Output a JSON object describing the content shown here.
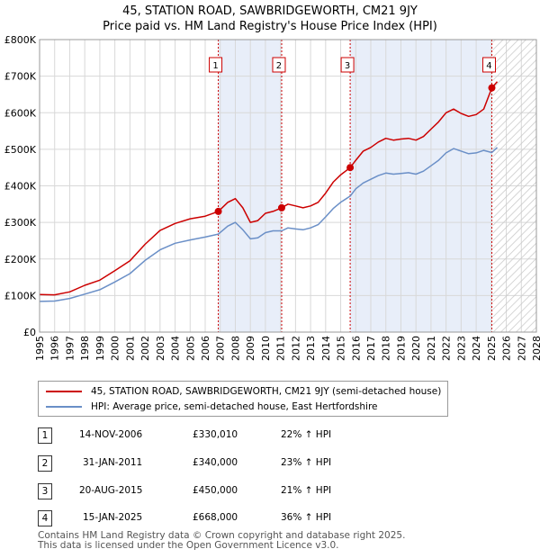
{
  "title_line1": "45, STATION ROAD, SAWBRIDGEWORTH, CM21 9JY",
  "title_line2": "Price paid vs. HM Land Registry's House Price Index (HPI)",
  "chart_data": {
    "type": "line",
    "title": "45, STATION ROAD, SAWBRIDGEWORTH, CM21 9JY — Price paid vs. HM Land Registry's House Price Index (HPI)",
    "xlim": [
      1995,
      2028
    ],
    "ylim": [
      0,
      800000
    ],
    "x_ticks": [
      1995,
      1996,
      1997,
      1998,
      1999,
      2000,
      2001,
      2002,
      2003,
      2004,
      2005,
      2006,
      2007,
      2008,
      2009,
      2010,
      2011,
      2012,
      2013,
      2014,
      2015,
      2016,
      2017,
      2018,
      2019,
      2020,
      2021,
      2022,
      2023,
      2024,
      2025,
      2026,
      2027,
      2028
    ],
    "y_ticks": [
      0,
      100000,
      200000,
      300000,
      400000,
      500000,
      600000,
      700000,
      800000
    ],
    "y_tick_labels": [
      "£0",
      "£100K",
      "£200K",
      "£300K",
      "£400K",
      "£500K",
      "£600K",
      "£700K",
      "£800K"
    ],
    "hatch_from": 2025.1,
    "series": [
      {
        "name": "45, STATION ROAD, SAWBRIDGEWORTH, CM21 9JY (semi-detached house)",
        "color": "#cc0000",
        "points": [
          [
            1995.0,
            103000
          ],
          [
            1996.0,
            102000
          ],
          [
            1997.0,
            110000
          ],
          [
            1998.0,
            128000
          ],
          [
            1999.0,
            142000
          ],
          [
            2000.0,
            168000
          ],
          [
            2001.0,
            195000
          ],
          [
            2002.0,
            240000
          ],
          [
            2003.0,
            278000
          ],
          [
            2004.0,
            297000
          ],
          [
            2005.0,
            310000
          ],
          [
            2006.0,
            317000
          ],
          [
            2006.87,
            330010
          ],
          [
            2007.5,
            355000
          ],
          [
            2008.0,
            365000
          ],
          [
            2008.5,
            340000
          ],
          [
            2009.0,
            300000
          ],
          [
            2009.5,
            305000
          ],
          [
            2010.0,
            325000
          ],
          [
            2010.5,
            330000
          ],
          [
            2011.08,
            340000
          ],
          [
            2011.5,
            350000
          ],
          [
            2012.0,
            345000
          ],
          [
            2012.5,
            340000
          ],
          [
            2013.0,
            345000
          ],
          [
            2013.5,
            355000
          ],
          [
            2014.0,
            380000
          ],
          [
            2014.5,
            410000
          ],
          [
            2015.0,
            430000
          ],
          [
            2015.63,
            450000
          ],
          [
            2016.0,
            470000
          ],
          [
            2016.5,
            495000
          ],
          [
            2017.0,
            505000
          ],
          [
            2017.5,
            520000
          ],
          [
            2018.0,
            530000
          ],
          [
            2018.5,
            525000
          ],
          [
            2019.0,
            528000
          ],
          [
            2019.5,
            530000
          ],
          [
            2020.0,
            525000
          ],
          [
            2020.5,
            535000
          ],
          [
            2021.0,
            555000
          ],
          [
            2021.5,
            575000
          ],
          [
            2022.0,
            600000
          ],
          [
            2022.5,
            610000
          ],
          [
            2023.0,
            598000
          ],
          [
            2023.5,
            590000
          ],
          [
            2024.0,
            595000
          ],
          [
            2024.5,
            610000
          ],
          [
            2025.04,
            668000
          ],
          [
            2025.4,
            685000
          ]
        ]
      },
      {
        "name": "HPI: Average price, semi-detached house, East Hertfordshire",
        "color": "#6a8fc7",
        "points": [
          [
            1995.0,
            84000
          ],
          [
            1996.0,
            85000
          ],
          [
            1997.0,
            92000
          ],
          [
            1998.0,
            104000
          ],
          [
            1999.0,
            116000
          ],
          [
            2000.0,
            137000
          ],
          [
            2001.0,
            160000
          ],
          [
            2002.0,
            196000
          ],
          [
            2003.0,
            225000
          ],
          [
            2004.0,
            243000
          ],
          [
            2005.0,
            252000
          ],
          [
            2006.0,
            260000
          ],
          [
            2006.87,
            268000
          ],
          [
            2007.5,
            290000
          ],
          [
            2008.0,
            300000
          ],
          [
            2008.5,
            280000
          ],
          [
            2009.0,
            255000
          ],
          [
            2009.5,
            258000
          ],
          [
            2010.0,
            272000
          ],
          [
            2010.5,
            277000
          ],
          [
            2011.08,
            277000
          ],
          [
            2011.5,
            285000
          ],
          [
            2012.0,
            282000
          ],
          [
            2012.5,
            280000
          ],
          [
            2013.0,
            285000
          ],
          [
            2013.5,
            294000
          ],
          [
            2014.0,
            315000
          ],
          [
            2014.5,
            338000
          ],
          [
            2015.0,
            355000
          ],
          [
            2015.63,
            372000
          ],
          [
            2016.0,
            392000
          ],
          [
            2016.5,
            408000
          ],
          [
            2017.0,
            418000
          ],
          [
            2017.5,
            428000
          ],
          [
            2018.0,
            435000
          ],
          [
            2018.5,
            432000
          ],
          [
            2019.0,
            434000
          ],
          [
            2019.5,
            436000
          ],
          [
            2020.0,
            432000
          ],
          [
            2020.5,
            440000
          ],
          [
            2021.0,
            455000
          ],
          [
            2021.5,
            470000
          ],
          [
            2022.0,
            490000
          ],
          [
            2022.5,
            502000
          ],
          [
            2023.0,
            495000
          ],
          [
            2023.5,
            488000
          ],
          [
            2024.0,
            490000
          ],
          [
            2024.5,
            497000
          ],
          [
            2025.04,
            491000
          ],
          [
            2025.4,
            505000
          ]
        ]
      }
    ],
    "sales": [
      {
        "label": "1",
        "x": 2006.87,
        "price": 330010
      },
      {
        "label": "2",
        "x": 2011.08,
        "price": 340000
      },
      {
        "label": "3",
        "x": 2015.63,
        "price": 450000
      },
      {
        "label": "4",
        "x": 2025.04,
        "price": 668000
      }
    ],
    "shaded_spans": [
      [
        2006.87,
        2011.08
      ],
      [
        2015.63,
        2025.04
      ]
    ]
  },
  "legend": {
    "property_label": "45, STATION ROAD, SAWBRIDGEWORTH, CM21 9JY (semi-detached house)",
    "hpi_label": "HPI: Average price, semi-detached house, East Hertfordshire"
  },
  "transactions": [
    {
      "num": "1",
      "date": "14-NOV-2006",
      "price": "£330,010",
      "hpi": "22% ↑ HPI"
    },
    {
      "num": "2",
      "date": "31-JAN-2011",
      "price": "£340,000",
      "hpi": "23% ↑ HPI"
    },
    {
      "num": "3",
      "date": "20-AUG-2015",
      "price": "£450,000",
      "hpi": "21% ↑ HPI"
    },
    {
      "num": "4",
      "date": "15-JAN-2025",
      "price": "£668,000",
      "hpi": "36% ↑ HPI"
    }
  ],
  "footer": {
    "line1": "Contains HM Land Registry data © Crown copyright and database right 2025.",
    "line2": "This data is licensed under the Open Government Licence v3.0."
  },
  "colors": {
    "property": "#cc0000",
    "hpi": "#6a8fc7",
    "shade": "#e8eef9",
    "grid": "#d8d8d8"
  }
}
